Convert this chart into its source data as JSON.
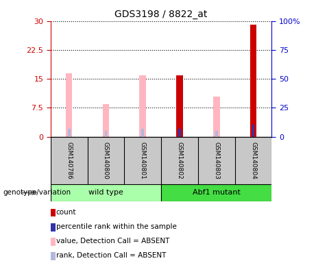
{
  "title": "GDS3198 / 8822_at",
  "samples": [
    "GSM140786",
    "GSM140800",
    "GSM140801",
    "GSM140802",
    "GSM140803",
    "GSM140804"
  ],
  "pink_values": [
    16.5,
    8.5,
    16.0,
    0,
    10.5,
    0
  ],
  "red_values": [
    0,
    0,
    0,
    16.0,
    0,
    29.0
  ],
  "blue_values": [
    0,
    0,
    0,
    2.0,
    0,
    3.2
  ],
  "light_blue_values": [
    2.0,
    1.5,
    2.0,
    0,
    1.5,
    0
  ],
  "ylim_left": [
    0,
    30
  ],
  "ylim_right": [
    0,
    100
  ],
  "yticks_left": [
    0,
    7.5,
    15,
    22.5,
    30
  ],
  "yticks_right": [
    0,
    25,
    50,
    75,
    100
  ],
  "ytick_labels_left": [
    "0",
    "7.5",
    "15",
    "22.5",
    "30"
  ],
  "ytick_labels_right": [
    "0",
    "25",
    "50",
    "75",
    "100%"
  ],
  "left_axis_color": "#cc0000",
  "right_axis_color": "#0000cc",
  "pink_color": "#ffb6c1",
  "red_color": "#cc0000",
  "blue_color": "#3333aa",
  "light_blue_color": "#b0b8dd",
  "group_spans": [
    {
      "label": "wild type",
      "start": 0,
      "end": 3,
      "color": "#aaffaa"
    },
    {
      "label": "Abf1 mutant",
      "start": 3,
      "end": 6,
      "color": "#44dd44"
    }
  ],
  "legend_items": [
    {
      "label": "count",
      "color": "#cc0000"
    },
    {
      "label": "percentile rank within the sample",
      "color": "#3333aa"
    },
    {
      "label": "value, Detection Call = ABSENT",
      "color": "#ffb6c1"
    },
    {
      "label": "rank, Detection Call = ABSENT",
      "color": "#b0b8dd"
    }
  ],
  "genotype_label": "genotype/variation",
  "figsize": [
    4.61,
    3.84
  ],
  "dpi": 100
}
